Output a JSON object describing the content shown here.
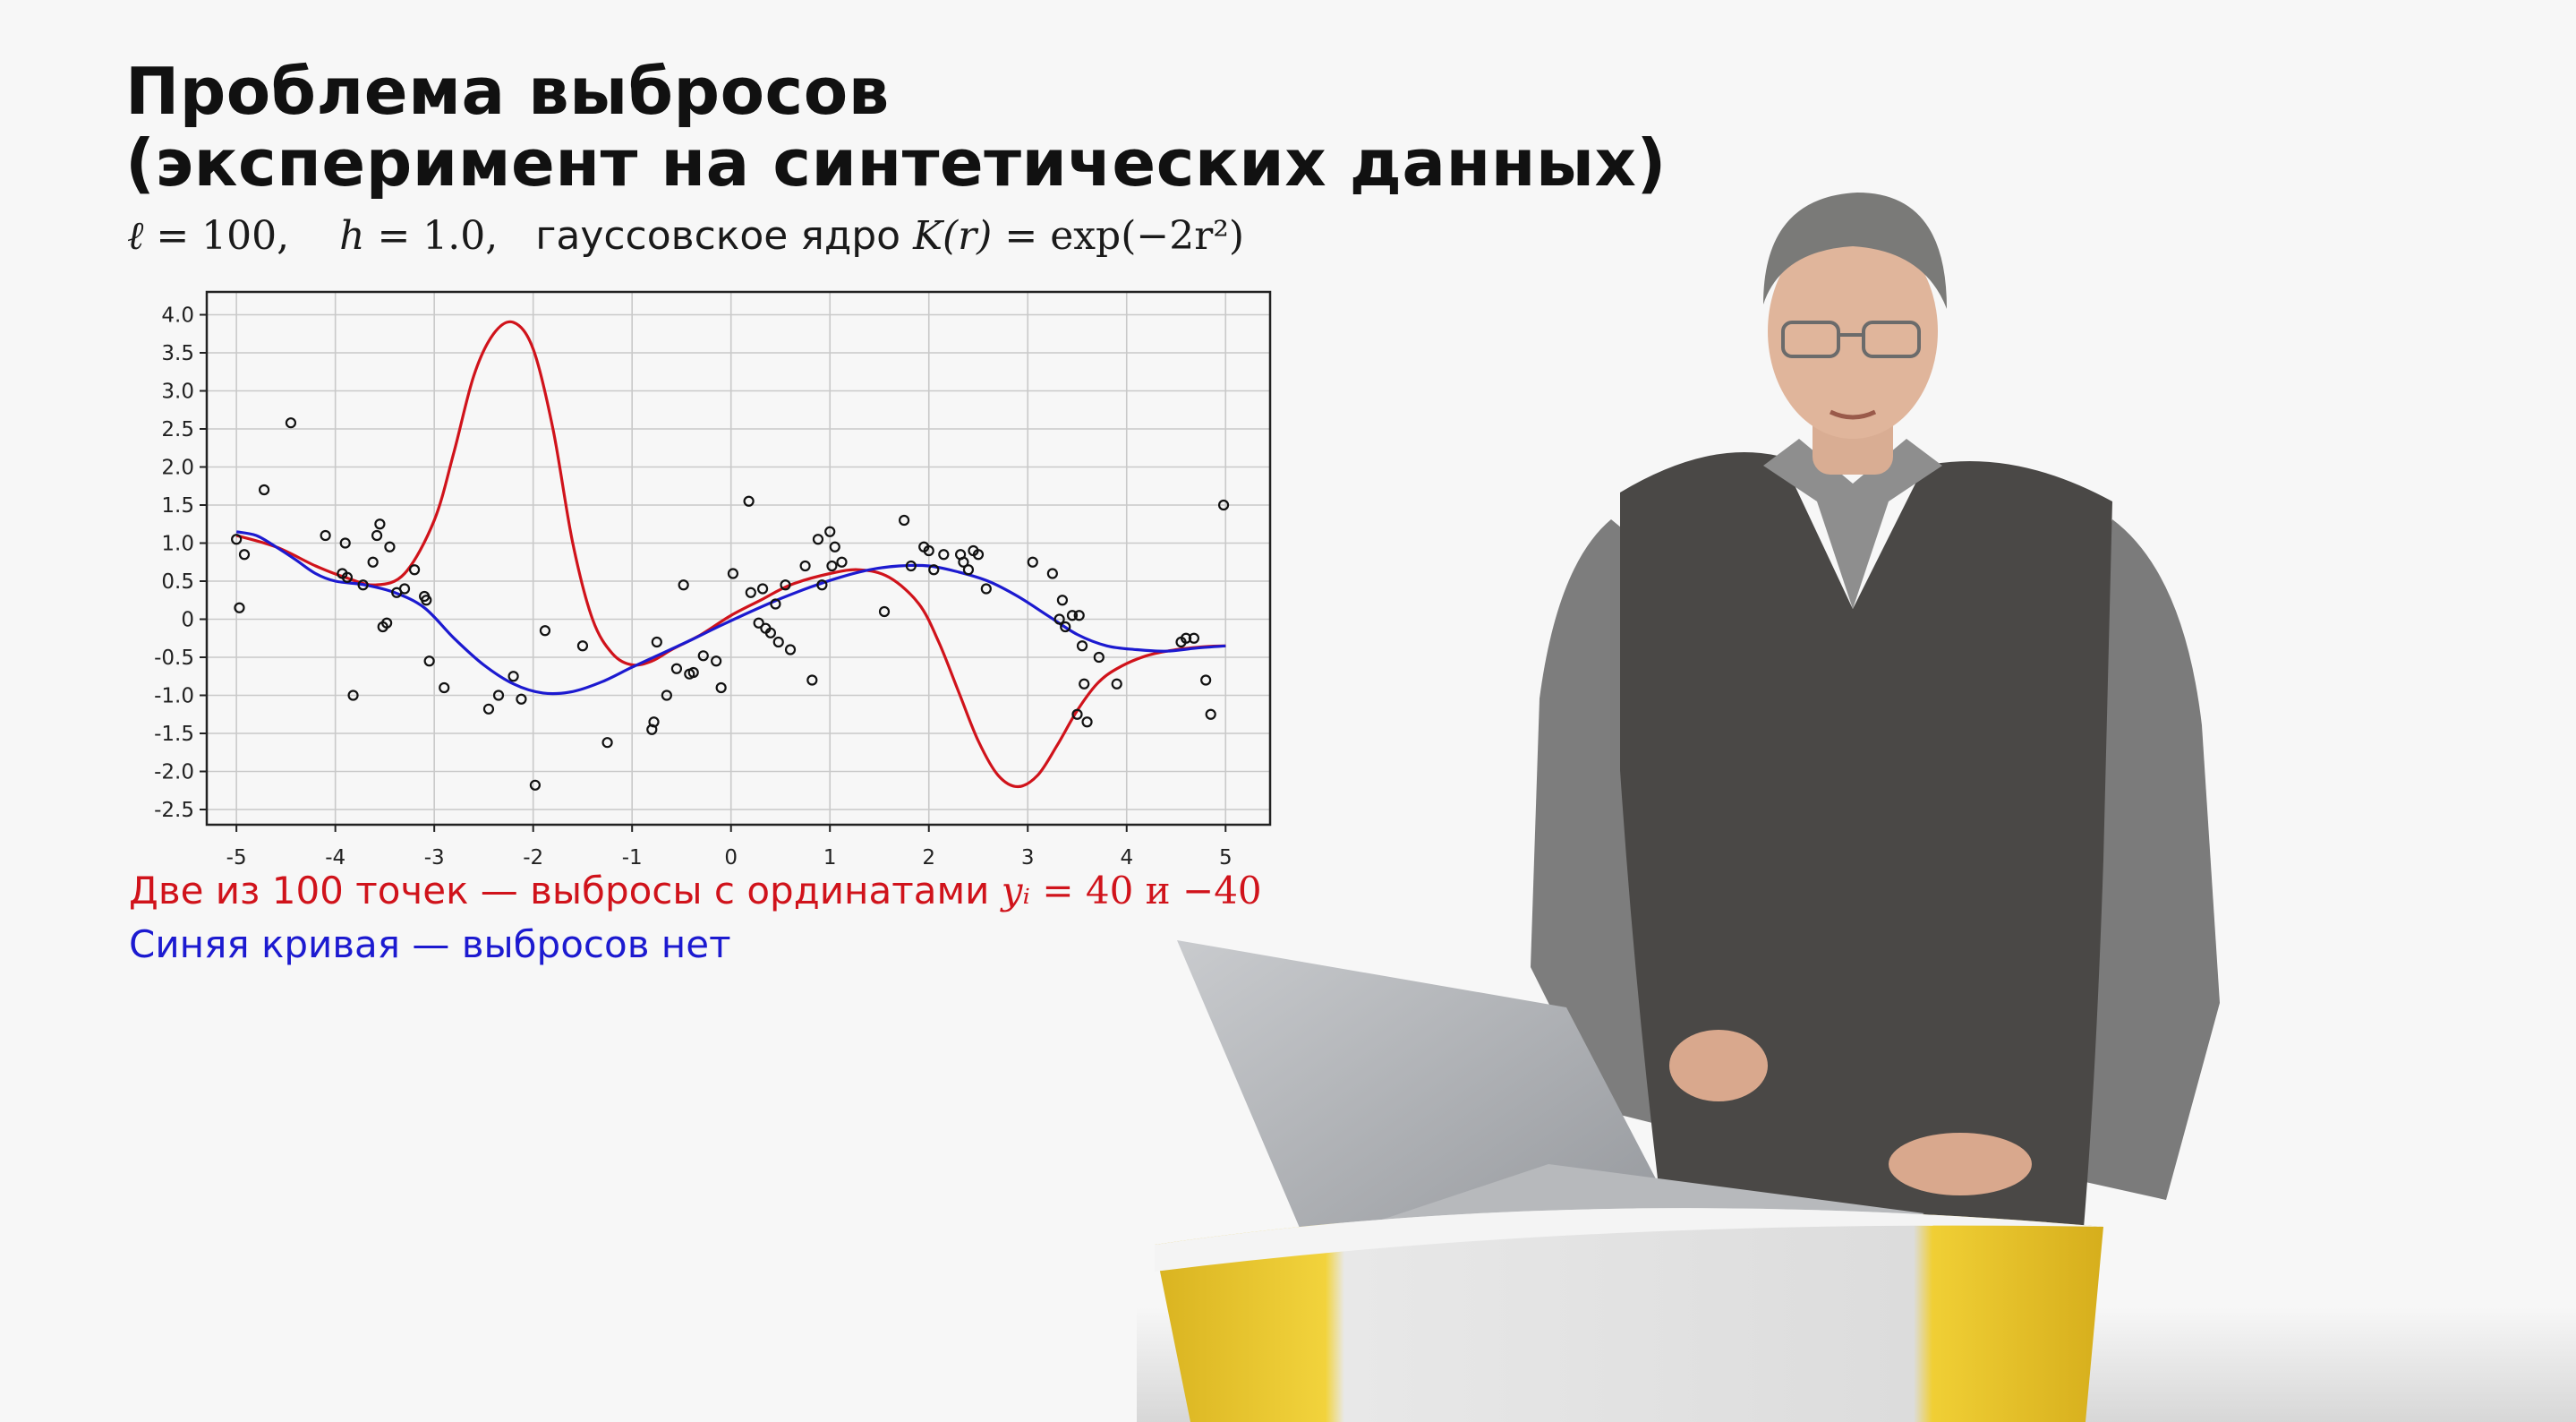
{
  "slide": {
    "title_line1": "Проблема выбросов",
    "title_line2": "(эксперимент на синтетических данных)",
    "params": {
      "ell": "ℓ",
      "ell_value": "= 100,",
      "h": "h",
      "h_value": "= 1.0,",
      "kernel_text": "гауссовское ядро",
      "kernel_formula_lhs": "K(r)",
      "kernel_formula_rhs": "= exp(−2r²)"
    },
    "caption_red_prefix": "Две из 100 точек — выбросы с ординатами",
    "caption_red_var": "yᵢ",
    "caption_red_suffix": "= 40 и −40",
    "caption_blue": "Синяя кривая — выбросов нет"
  },
  "colors": {
    "red_curve": "#d0131b",
    "blue_curve": "#1c1ad0",
    "points": "#111111",
    "grid": "#c9c9c9",
    "background": "#f7f7f7"
  },
  "chart_data": {
    "type": "scatter",
    "xlim": [
      -5.3,
      5.45
    ],
    "ylim": [
      -2.7,
      4.3
    ],
    "x_ticks": [
      -5,
      -4,
      -3,
      -2,
      -1,
      0,
      1,
      2,
      3,
      4,
      5
    ],
    "x_tick_labels": [
      "-5",
      "-4",
      "-3",
      "-2",
      "-1",
      "0",
      "1",
      "2",
      "3",
      "4",
      "5"
    ],
    "y_ticks": [
      4.0,
      3.5,
      3.0,
      2.5,
      2.0,
      1.5,
      1.0,
      0.5,
      0,
      -0.5,
      -1.0,
      -1.5,
      -2.0,
      -2.5
    ],
    "y_tick_labels": [
      "4.0",
      "3.5",
      "3.0",
      "2.5",
      "2.0",
      "1.5",
      "1.0",
      "0.5",
      "0",
      "-0.5",
      "-1.0",
      "-1.5",
      "-2.0",
      "-2.5"
    ],
    "grid": true,
    "series": [
      {
        "kind": "line",
        "color": "#d0131b",
        "x": [
          -5.0,
          -4.6,
          -4.2,
          -3.9,
          -3.6,
          -3.3,
          -3.0,
          -2.8,
          -2.6,
          -2.4,
          -2.2,
          -2.0,
          -1.8,
          -1.6,
          -1.4,
          -1.2,
          -1.0,
          -0.8,
          -0.6,
          -0.3,
          0.0,
          0.3,
          0.6,
          1.0,
          1.3,
          1.6,
          1.9,
          2.1,
          2.3,
          2.5,
          2.7,
          2.9,
          3.1,
          3.3,
          3.5,
          3.7,
          3.9,
          4.2,
          4.5,
          4.8,
          5.0
        ],
        "y": [
          1.1,
          0.95,
          0.7,
          0.55,
          0.45,
          0.6,
          1.3,
          2.2,
          3.2,
          3.75,
          3.9,
          3.55,
          2.5,
          1.0,
          0.0,
          -0.45,
          -0.6,
          -0.55,
          -0.4,
          -0.2,
          0.05,
          0.25,
          0.45,
          0.6,
          0.65,
          0.55,
          0.2,
          -0.3,
          -0.95,
          -1.6,
          -2.05,
          -2.2,
          -2.05,
          -1.65,
          -1.2,
          -0.85,
          -0.65,
          -0.48,
          -0.4,
          -0.36,
          -0.35
        ]
      },
      {
        "kind": "line",
        "color": "#1c1ad0",
        "x": [
          -5.0,
          -4.8,
          -4.6,
          -4.4,
          -4.2,
          -4.0,
          -3.7,
          -3.4,
          -3.1,
          -2.8,
          -2.5,
          -2.2,
          -1.9,
          -1.6,
          -1.3,
          -1.0,
          -0.7,
          -0.4,
          -0.1,
          0.2,
          0.5,
          0.8,
          1.1,
          1.4,
          1.7,
          2.0,
          2.3,
          2.6,
          2.9,
          3.2,
          3.5,
          3.8,
          4.1,
          4.4,
          4.7,
          5.0
        ],
        "y": [
          1.15,
          1.1,
          0.95,
          0.78,
          0.6,
          0.5,
          0.45,
          0.35,
          0.15,
          -0.25,
          -0.6,
          -0.85,
          -0.97,
          -0.95,
          -0.82,
          -0.63,
          -0.45,
          -0.27,
          -0.08,
          0.1,
          0.27,
          0.42,
          0.55,
          0.65,
          0.7,
          0.7,
          0.62,
          0.5,
          0.3,
          0.05,
          -0.2,
          -0.35,
          -0.4,
          -0.42,
          -0.38,
          -0.35
        ]
      },
      {
        "kind": "points",
        "color": "#111111",
        "x": [
          -5.0,
          -4.97,
          -4.92,
          -4.72,
          -4.45,
          -4.1,
          -3.93,
          -3.9,
          -3.88,
          -3.82,
          -3.72,
          -3.62,
          -3.58,
          -3.55,
          -3.52,
          -3.48,
          -3.45,
          -3.38,
          -3.3,
          -3.2,
          -3.1,
          -3.08,
          -3.05,
          -2.9,
          -2.45,
          -2.35,
          -2.2,
          -2.12,
          -1.98,
          -1.88,
          -1.5,
          -1.25,
          -0.8,
          -0.78,
          -0.75,
          -0.65,
          -0.55,
          -0.48,
          -0.42,
          -0.38,
          -0.28,
          -0.15,
          -0.1,
          0.02,
          0.18,
          0.2,
          0.28,
          0.32,
          0.35,
          0.4,
          0.45,
          0.48,
          0.55,
          0.6,
          0.75,
          0.82,
          0.88,
          0.92,
          1.0,
          1.02,
          1.05,
          1.12,
          1.55,
          1.75,
          1.82,
          1.95,
          2.0,
          2.05,
          2.15,
          2.32,
          2.35,
          2.4,
          2.45,
          2.5,
          2.58,
          3.05,
          3.25,
          3.32,
          3.35,
          3.38,
          3.45,
          3.5,
          3.52,
          3.55,
          3.57,
          3.6,
          3.72,
          3.9,
          4.55,
          4.6,
          4.68,
          4.8,
          4.85,
          4.98
        ],
        "y": [
          1.05,
          0.15,
          0.85,
          1.7,
          2.58,
          1.1,
          0.6,
          1.0,
          0.55,
          -1.0,
          0.45,
          0.75,
          1.1,
          1.25,
          -0.1,
          -0.05,
          0.95,
          0.35,
          0.4,
          0.65,
          0.3,
          0.25,
          -0.55,
          -0.9,
          -1.18,
          -1.0,
          -0.75,
          -1.05,
          -2.18,
          -0.15,
          -0.35,
          -1.62,
          -1.45,
          -1.35,
          -0.3,
          -1.0,
          -0.65,
          0.45,
          -0.72,
          -0.7,
          -0.48,
          -0.55,
          -0.9,
          0.6,
          1.55,
          0.35,
          -0.05,
          0.4,
          -0.12,
          -0.18,
          0.2,
          -0.3,
          0.45,
          -0.4,
          0.7,
          -0.8,
          1.05,
          0.45,
          1.15,
          0.7,
          0.95,
          0.75,
          0.1,
          1.3,
          0.7,
          0.95,
          0.9,
          0.65,
          0.85,
          0.85,
          0.75,
          0.65,
          0.9,
          0.85,
          0.4,
          0.75,
          0.6,
          0.0,
          0.25,
          -0.1,
          0.05,
          -1.25,
          0.05,
          -0.35,
          -0.85,
          -1.35,
          -0.5,
          -0.85,
          -0.3,
          -0.25,
          -0.25,
          -0.8,
          -1.25,
          1.5
        ]
      }
    ]
  }
}
